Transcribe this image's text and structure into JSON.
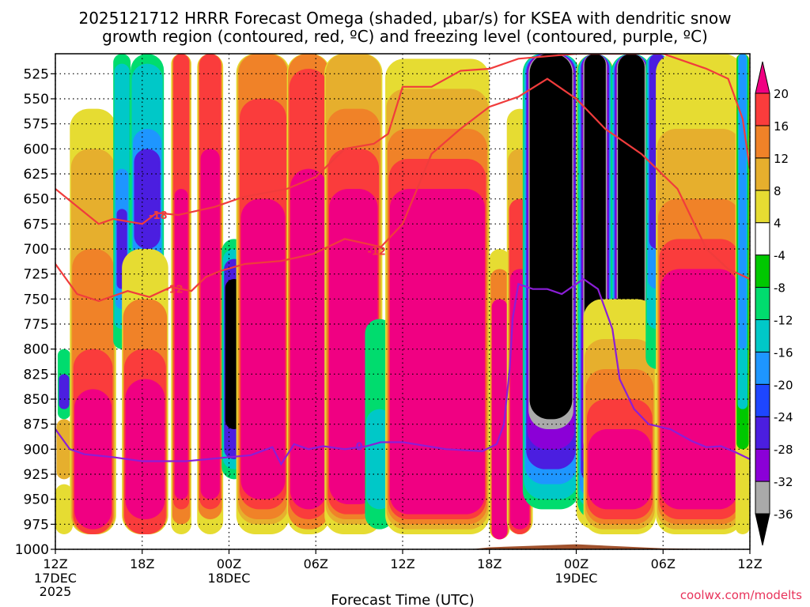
{
  "title_line1": "2025121712 HRRR Forecast Omega (shaded, μbar/s) for KSEA with dendritic snow",
  "title_line2": "growth region (contoured, red, ºC) and freezing level (contoured, purple, ºC)",
  "xlabel": "Forecast Time (UTC)",
  "watermark": "coolwx.com/modelts",
  "chart_data": {
    "type": "heatmap",
    "x_unit": "forecast hour from 2025-12-17 12Z",
    "xlim": [
      0,
      48
    ],
    "ylim": [
      1000,
      505
    ],
    "y_ticks": [
      525,
      550,
      575,
      600,
      625,
      650,
      675,
      700,
      725,
      750,
      775,
      800,
      825,
      850,
      875,
      900,
      925,
      950,
      975,
      1000
    ],
    "x_ticks": [
      {
        "x": 0,
        "label": "12Z",
        "sub1": "17DEC",
        "sub2": "2025"
      },
      {
        "x": 6,
        "label": "18Z",
        "sub1": "",
        "sub2": ""
      },
      {
        "x": 12,
        "label": "00Z",
        "sub1": "18DEC",
        "sub2": ""
      },
      {
        "x": 18,
        "label": "06Z",
        "sub1": "",
        "sub2": ""
      },
      {
        "x": 24,
        "label": "12Z",
        "sub1": "",
        "sub2": ""
      },
      {
        "x": 30,
        "label": "18Z",
        "sub1": "",
        "sub2": ""
      },
      {
        "x": 36,
        "label": "00Z",
        "sub1": "19DEC",
        "sub2": ""
      },
      {
        "x": 42,
        "label": "06Z",
        "sub1": "",
        "sub2": ""
      },
      {
        "x": 48,
        "label": "12Z",
        "sub1": "",
        "sub2": ""
      }
    ],
    "grid": true,
    "colorbar": {
      "levels": [
        -36,
        -32,
        -28,
        -24,
        -20,
        -16,
        -12,
        -8,
        -4,
        4,
        8,
        12,
        16,
        20
      ],
      "tick_labels": [
        "20",
        "16",
        "12",
        "8",
        "4",
        "-4",
        "-8",
        "-12",
        "-16",
        "-20",
        "-24",
        "-28",
        "-32",
        "-36"
      ],
      "colors_bottom_to_top": [
        "#000000",
        "#aaaaaa",
        "#8b00d7",
        "#4b1ee0",
        "#1e46ff",
        "#1e96ff",
        "#00c8c8",
        "#00dc6e",
        "#00c800",
        "#ffffff",
        "#e6dc32",
        "#e6af2d",
        "#f08228",
        "#fa3c3c",
        "#f00082"
      ]
    },
    "omega_columns": [
      {
        "x0": 0.0,
        "x1": 1.2,
        "bands": [
          [
            935,
            985,
            "#e6dc32"
          ],
          [
            870,
            930,
            "#e6af2d"
          ],
          [
            800,
            870,
            "#00dc6e"
          ],
          [
            825,
            860,
            "#4b1ee0"
          ]
        ]
      },
      {
        "x0": 1.0,
        "x1": 4.2,
        "bands": [
          [
            560,
            985,
            "#e6dc32"
          ],
          [
            600,
            985,
            "#e6af2d"
          ],
          [
            700,
            985,
            "#f08228"
          ],
          [
            800,
            985,
            "#fa3c3c"
          ],
          [
            840,
            980,
            "#f00082"
          ]
        ]
      },
      {
        "x0": 4.0,
        "x1": 5.2,
        "bands": [
          [
            505,
            800,
            "#00dc6e"
          ],
          [
            515,
            780,
            "#00c8c8"
          ],
          [
            620,
            760,
            "#1e96ff"
          ],
          [
            660,
            740,
            "#4b1ee0"
          ]
        ]
      },
      {
        "x0": 5.2,
        "x1": 7.5,
        "bands": [
          [
            505,
            760,
            "#00dc6e"
          ],
          [
            515,
            740,
            "#00c8c8"
          ],
          [
            580,
            720,
            "#1e96ff"
          ],
          [
            600,
            700,
            "#4b1ee0"
          ]
        ]
      },
      {
        "x0": 4.6,
        "x1": 7.8,
        "bands": [
          [
            700,
            985,
            "#e6dc32"
          ],
          [
            750,
            985,
            "#f08228"
          ],
          [
            800,
            985,
            "#fa3c3c"
          ],
          [
            830,
            970,
            "#f00082"
          ]
        ]
      },
      {
        "x0": 8.0,
        "x1": 9.4,
        "bands": [
          [
            505,
            985,
            "#e6dc32"
          ],
          [
            505,
            975,
            "#f08228"
          ],
          [
            505,
            960,
            "#fa3c3c"
          ],
          [
            640,
            950,
            "#f00082"
          ]
        ]
      },
      {
        "x0": 9.8,
        "x1": 11.6,
        "bands": [
          [
            505,
            985,
            "#e6dc32"
          ],
          [
            505,
            970,
            "#f08228"
          ],
          [
            505,
            960,
            "#fa3c3c"
          ],
          [
            600,
            950,
            "#f00082"
          ]
        ]
      },
      {
        "x0": 11.5,
        "x1": 13.2,
        "bands": [
          [
            690,
            930,
            "#00dc6e"
          ],
          [
            700,
            920,
            "#00c8c8"
          ],
          [
            710,
            910,
            "#4b1ee0"
          ],
          [
            730,
            880,
            "#000000"
          ]
        ]
      },
      {
        "x0": 12.5,
        "x1": 16.2,
        "bands": [
          [
            505,
            985,
            "#e6dc32"
          ],
          [
            505,
            975,
            "#e6af2d"
          ],
          [
            505,
            970,
            "#f08228"
          ],
          [
            550,
            960,
            "#fa3c3c"
          ],
          [
            650,
            950,
            "#f00082"
          ]
        ]
      },
      {
        "x0": 16.0,
        "x1": 19.0,
        "bands": [
          [
            505,
            985,
            "#e6dc32"
          ],
          [
            505,
            980,
            "#f08228"
          ],
          [
            520,
            970,
            "#fa3c3c"
          ],
          [
            620,
            960,
            "#f00082"
          ]
        ]
      },
      {
        "x0": 18.6,
        "x1": 22.6,
        "bands": [
          [
            505,
            985,
            "#e6dc32"
          ],
          [
            505,
            975,
            "#e6af2d"
          ],
          [
            560,
            970,
            "#f08228"
          ],
          [
            600,
            965,
            "#fa3c3c"
          ],
          [
            640,
            955,
            "#f00082"
          ]
        ]
      },
      {
        "x0": 21.4,
        "x1": 23.4,
        "bands": [
          [
            770,
            980,
            "#00dc6e"
          ],
          [
            860,
            960,
            "#00c8c8"
          ]
        ]
      },
      {
        "x0": 22.8,
        "x1": 30.0,
        "bands": [
          [
            510,
            985,
            "#e6dc32"
          ],
          [
            540,
            980,
            "#e6af2d"
          ],
          [
            580,
            975,
            "#f08228"
          ],
          [
            610,
            970,
            "#fa3c3c"
          ],
          [
            640,
            965,
            "#f00082"
          ]
        ]
      },
      {
        "x0": 30.0,
        "x1": 31.4,
        "bands": [
          [
            700,
            990,
            "#e6dc32"
          ],
          [
            720,
            990,
            "#f08228"
          ],
          [
            750,
            990,
            "#f00082"
          ]
        ]
      },
      {
        "x0": 31.2,
        "x1": 33.0,
        "bands": [
          [
            560,
            985,
            "#e6dc32"
          ],
          [
            600,
            985,
            "#e6af2d"
          ],
          [
            650,
            985,
            "#fa3c3c"
          ],
          [
            720,
            980,
            "#f00082"
          ]
        ]
      },
      {
        "x0": 32.3,
        "x1": 36.2,
        "bands": [
          [
            505,
            960,
            "#00dc6e"
          ],
          [
            505,
            950,
            "#00c8c8"
          ],
          [
            505,
            935,
            "#1e96ff"
          ],
          [
            505,
            920,
            "#4b1ee0"
          ],
          [
            505,
            900,
            "#8b00d7"
          ],
          [
            505,
            880,
            "#aaaaaa"
          ],
          [
            505,
            870,
            "#000000"
          ]
        ]
      },
      {
        "x0": 36.0,
        "x1": 38.6,
        "bands": [
          [
            505,
            980,
            "#e6dc32"
          ],
          [
            505,
            970,
            "#00dc6e"
          ],
          [
            505,
            960,
            "#00c8c8"
          ],
          [
            505,
            950,
            "#1e96ff"
          ],
          [
            505,
            935,
            "#4b1ee0"
          ],
          [
            505,
            920,
            "#8b00d7"
          ],
          [
            505,
            905,
            "#aaaaaa"
          ],
          [
            505,
            890,
            "#000000"
          ]
        ]
      },
      {
        "x0": 38.4,
        "x1": 41.2,
        "bands": [
          [
            505,
            900,
            "#00dc6e"
          ],
          [
            505,
            880,
            "#00c8c8"
          ],
          [
            505,
            860,
            "#1e96ff"
          ],
          [
            505,
            840,
            "#4b1ee0"
          ],
          [
            505,
            820,
            "#8b00d7"
          ],
          [
            505,
            800,
            "#aaaaaa"
          ],
          [
            505,
            780,
            "#000000"
          ]
        ]
      },
      {
        "x0": 36.5,
        "x1": 41.5,
        "bands": [
          [
            750,
            985,
            "#e6dc32"
          ],
          [
            790,
            980,
            "#e6af2d"
          ],
          [
            820,
            975,
            "#f08228"
          ],
          [
            850,
            970,
            "#fa3c3c"
          ],
          [
            880,
            960,
            "#f00082"
          ]
        ]
      },
      {
        "x0": 40.8,
        "x1": 42.4,
        "bands": [
          [
            505,
            820,
            "#00dc6e"
          ],
          [
            505,
            780,
            "#00c8c8"
          ],
          [
            505,
            740,
            "#1e96ff"
          ],
          [
            505,
            700,
            "#4b1ee0"
          ]
        ]
      },
      {
        "x0": 41.5,
        "x1": 47.5,
        "bands": [
          [
            505,
            985,
            "#e6dc32"
          ],
          [
            580,
            980,
            "#e6af2d"
          ],
          [
            650,
            975,
            "#f08228"
          ],
          [
            690,
            970,
            "#fa3c3c"
          ],
          [
            720,
            960,
            "#f00082"
          ]
        ]
      },
      {
        "x0": 47.0,
        "x1": 48.0,
        "bands": [
          [
            505,
            985,
            "#e6dc32"
          ],
          [
            505,
            900,
            "#00c800"
          ],
          [
            505,
            860,
            "#00c8c8"
          ],
          [
            505,
            800,
            "#1e96ff"
          ]
        ]
      }
    ],
    "terrain": {
      "color": "#a0522d",
      "x": [
        0,
        6,
        12,
        18,
        24,
        30,
        36,
        42,
        48
      ],
      "pressure": [
        1003,
        1008,
        1010,
        1009,
        1007,
        998,
        995,
        999,
        1000
      ]
    },
    "dgz_contours": [
      {
        "name": "-12",
        "label": "-12",
        "x": [
          0,
          1.5,
          3,
          5,
          6.5,
          8,
          9.4,
          10.4,
          11.4,
          13.1,
          15.6,
          17.8,
          20,
          22.5,
          24,
          26,
          28,
          30,
          32,
          34,
          36,
          38,
          40.5,
          43,
          45,
          46.5,
          48
        ],
        "p": [
          715,
          745,
          752,
          742,
          748,
          738,
          742,
          728,
          722,
          715,
          712,
          705,
          690,
          698,
          675,
          605,
          580,
          558,
          548,
          530,
          550,
          580,
          605,
          640,
          700,
          720,
          730
        ]
      },
      {
        "name": "-18",
        "label": "-18",
        "x": [
          0,
          3,
          4,
          6,
          7,
          8.5,
          11,
          13,
          16,
          18,
          20,
          22,
          23,
          24,
          26,
          28,
          30,
          32,
          36,
          38,
          40,
          42,
          44,
          45,
          46.5,
          47.5,
          48
        ],
        "p": [
          640,
          675,
          670,
          675,
          664,
          666,
          658,
          648,
          640,
          628,
          600,
          595,
          585,
          538,
          538,
          522,
          520,
          510,
          505,
          505,
          505,
          505,
          515,
          520,
          530,
          570,
          620
        ]
      }
    ],
    "freezing_level": {
      "name": "0",
      "label": "0",
      "x": [
        0,
        1,
        2,
        4,
        6,
        7.5,
        9,
        10.5,
        12,
        13.5,
        15,
        15.6,
        16.5,
        17.5,
        18.5,
        20,
        21.5,
        22.5,
        24,
        27,
        29.5,
        30.5,
        31,
        31.4,
        31.6,
        32,
        33,
        34,
        35,
        36.5,
        37.5,
        38,
        38.5,
        39,
        40,
        41,
        42.5,
        44,
        45,
        46,
        47,
        48
      ],
      "p": [
        880,
        900,
        905,
        908,
        912,
        912,
        912,
        910,
        908,
        906,
        898,
        915,
        895,
        900,
        897,
        900,
        897,
        893,
        893,
        900,
        902,
        895,
        875,
        820,
        770,
        735,
        740,
        740,
        745,
        730,
        740,
        760,
        780,
        830,
        860,
        875,
        880,
        892,
        898,
        897,
        903,
        910
      ]
    }
  }
}
